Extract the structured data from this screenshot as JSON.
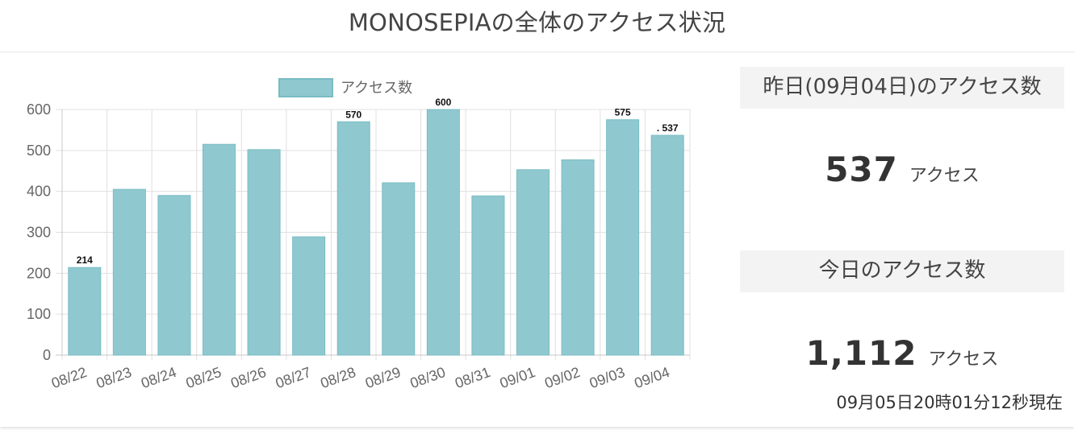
{
  "page": {
    "title": "MONOSEPIAの全体のアクセス状況"
  },
  "stats": {
    "yesterday": {
      "label": "昨日(09月04日)のアクセス数",
      "value": "537",
      "unit": "アクセス"
    },
    "today": {
      "label": "今日のアクセス数",
      "value": "1,112",
      "unit": "アクセス"
    },
    "timestamp": "09月05日20時01分12秒現在"
  },
  "colors": {
    "bar_fill": "#8fc9cf",
    "bar_stroke": "#79bcc3",
    "grid": "#e0e0e0",
    "axis_text": "#666666"
  },
  "chart_data": {
    "type": "bar",
    "categories": [
      "08/22",
      "08/23",
      "08/24",
      "08/25",
      "08/26",
      "08/27",
      "08/28",
      "08/29",
      "08/30",
      "08/31",
      "09/01",
      "09/02",
      "09/03",
      "09/04"
    ],
    "series": [
      {
        "name": "アクセス数",
        "values": [
          214,
          405,
          390,
          515,
          502,
          289,
          570,
          421,
          600,
          389,
          453,
          477,
          575,
          537
        ]
      }
    ],
    "data_labels": [
      {
        "index": 0,
        "text": "214"
      },
      {
        "index": 6,
        "text": "570"
      },
      {
        "index": 8,
        "text": "600"
      },
      {
        "index": 12,
        "text": "575"
      },
      {
        "index": 13,
        "text": ". 537"
      }
    ],
    "yticks": [
      0,
      100,
      200,
      300,
      400,
      500,
      600
    ],
    "ylim": [
      0,
      600
    ],
    "legend_position": "top-center",
    "grid": true,
    "xlabel": "",
    "ylabel": ""
  }
}
